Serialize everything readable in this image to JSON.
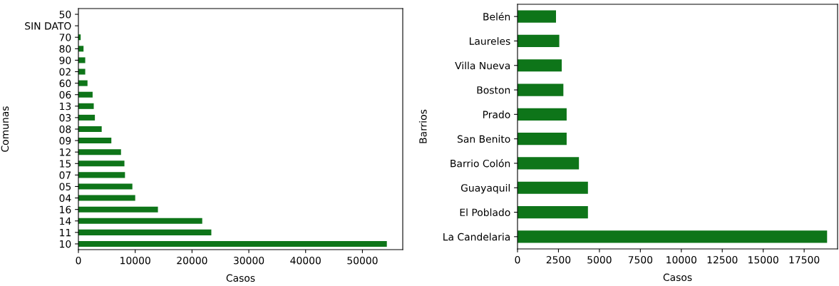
{
  "chart_data": [
    {
      "type": "bar",
      "orientation": "horizontal",
      "xlabel": "Casos",
      "ylabel": "Comunas",
      "categories": [
        "50",
        "SIN DATO",
        "70",
        "80",
        "90",
        "02",
        "60",
        "06",
        "13",
        "03",
        "08",
        "09",
        "12",
        "15",
        "07",
        "05",
        "04",
        "16",
        "14",
        "11",
        "10"
      ],
      "values": [
        0,
        0,
        400,
        900,
        1200,
        1200,
        1600,
        2500,
        2700,
        2900,
        4100,
        5800,
        7500,
        8100,
        8200,
        9500,
        10000,
        14000,
        21800,
        23400,
        54300
      ],
      "color": "#0e7519",
      "xlim": [
        0,
        57100
      ],
      "xticks": [
        0,
        10000,
        20000,
        30000,
        40000,
        50000
      ],
      "grid": false,
      "legend": false
    },
    {
      "type": "bar",
      "orientation": "horizontal",
      "xlabel": "Casos",
      "ylabel": "Barrios",
      "categories": [
        "Belén",
        "Laureles",
        "Villa Nueva",
        "Boston",
        "Prado",
        "San Benito",
        "Barrio Colón",
        "Guayaquil",
        "El Poblado",
        "La Candelaria"
      ],
      "values": [
        2350,
        2550,
        2700,
        2800,
        3000,
        3000,
        3750,
        4300,
        4300,
        18900
      ],
      "color": "#0e7519",
      "xlim": [
        0,
        19540
      ],
      "xticks": [
        0,
        2500,
        5000,
        7500,
        10000,
        12500,
        15000,
        17500
      ],
      "grid": false,
      "legend": false
    }
  ]
}
